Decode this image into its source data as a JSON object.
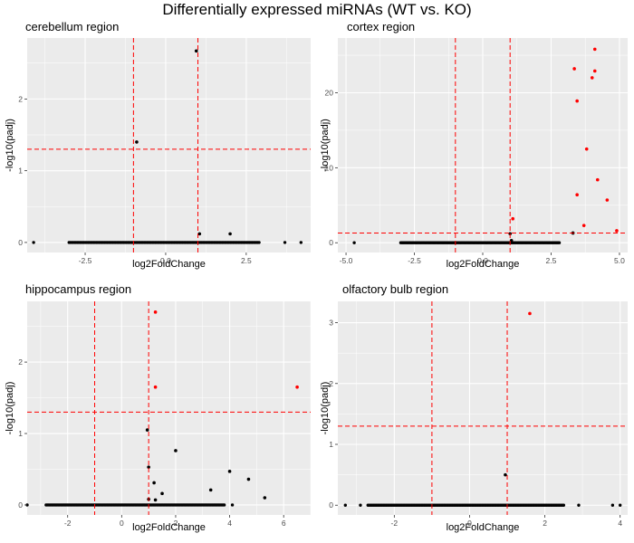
{
  "figure": {
    "title": "Differentially expressed miRNAs (WT vs. KO)"
  },
  "colors": {
    "panel_background": "#ebebeb",
    "grid_line": "#ffffff",
    "threshold_line": "#ff0000",
    "significant_point": "#ff0000",
    "nonsignificant_point": "#000000"
  },
  "chart_data": [
    {
      "type": "scatter",
      "title": "cerebellum region",
      "xlabel": "log2FoldChange",
      "ylabel": "-log10(padj)",
      "xlim": [
        -4.3,
        4.5
      ],
      "ylim": [
        -0.14,
        2.85
      ],
      "xticks": [
        -2.5,
        0,
        2.5
      ],
      "xtick_labels": [
        "-2.5",
        "0.0",
        "2.5"
      ],
      "yticks": [
        0,
        1,
        2
      ],
      "ytick_labels": [
        "0",
        "1",
        "2"
      ],
      "thresholds": {
        "x": [
          -1,
          1
        ],
        "y": 1.3
      },
      "grid": true,
      "baseline_range": [
        -3.0,
        2.9
      ],
      "baseline_extra": [
        -4.1,
        3.7,
        4.2
      ],
      "points": [
        {
          "x": 0.95,
          "y": 2.67,
          "sig": false
        },
        {
          "x": -0.9,
          "y": 1.4,
          "sig": false
        },
        {
          "x": 1.05,
          "y": 0.12,
          "sig": false
        },
        {
          "x": 2.0,
          "y": 0.12,
          "sig": false
        }
      ]
    },
    {
      "type": "scatter",
      "title": "cortex region",
      "xlabel": "log2FoldChange",
      "ylabel": "-log10(padj)",
      "xlim": [
        -5.3,
        5.3
      ],
      "ylim": [
        -1.3,
        27.3
      ],
      "xticks": [
        -5,
        -2.5,
        0,
        2.5,
        5
      ],
      "xtick_labels": [
        "-5.0",
        "-2.5",
        "0.0",
        "2.5",
        "5.0"
      ],
      "yticks": [
        0,
        10,
        20
      ],
      "ytick_labels": [
        "0",
        "10",
        "20"
      ],
      "thresholds": {
        "x": [
          -1,
          1
        ],
        "y": 1.3
      },
      "grid": true,
      "baseline_range": [
        -3.0,
        2.8
      ],
      "baseline_extra": [
        -4.7
      ],
      "points": [
        {
          "x": 4.1,
          "y": 25.8,
          "sig": true
        },
        {
          "x": 3.35,
          "y": 23.2,
          "sig": true
        },
        {
          "x": 4.1,
          "y": 22.9,
          "sig": true
        },
        {
          "x": 4.0,
          "y": 22.0,
          "sig": true
        },
        {
          "x": 3.45,
          "y": 18.9,
          "sig": true
        },
        {
          "x": 3.8,
          "y": 12.5,
          "sig": true
        },
        {
          "x": 4.2,
          "y": 8.4,
          "sig": true
        },
        {
          "x": 3.45,
          "y": 6.4,
          "sig": true
        },
        {
          "x": 4.55,
          "y": 5.7,
          "sig": true
        },
        {
          "x": 3.7,
          "y": 2.3,
          "sig": true
        },
        {
          "x": 4.9,
          "y": 1.6,
          "sig": true
        },
        {
          "x": 1.1,
          "y": 3.2,
          "sig": true
        },
        {
          "x": 3.3,
          "y": 1.3,
          "sig": false
        },
        {
          "x": 1.0,
          "y": 1.2,
          "sig": false
        },
        {
          "x": 1.05,
          "y": 0.3,
          "sig": false
        }
      ]
    },
    {
      "type": "scatter",
      "title": "hippocampus region",
      "xlabel": "log2FoldChange",
      "ylabel": "-log10(padj)",
      "xlim": [
        -3.5,
        7.0
      ],
      "ylim": [
        -0.14,
        2.85
      ],
      "xticks": [
        -2,
        0,
        2,
        4,
        6
      ],
      "xtick_labels": [
        "-2",
        "0",
        "2",
        "4",
        "6"
      ],
      "yticks": [
        0,
        1,
        2
      ],
      "ytick_labels": [
        "0",
        "1",
        "2"
      ],
      "thresholds": {
        "x": [
          -1,
          1
        ],
        "y": 1.3
      },
      "grid": true,
      "baseline_range": [
        -2.8,
        3.8
      ],
      "baseline_extra": [
        -3.5,
        4.1
      ],
      "points": [
        {
          "x": 1.25,
          "y": 2.7,
          "sig": true
        },
        {
          "x": 1.25,
          "y": 1.65,
          "sig": true
        },
        {
          "x": 6.5,
          "y": 1.65,
          "sig": true
        },
        {
          "x": 0.95,
          "y": 1.05,
          "sig": false
        },
        {
          "x": 2.0,
          "y": 0.76,
          "sig": false
        },
        {
          "x": 1.0,
          "y": 0.53,
          "sig": false
        },
        {
          "x": 4.0,
          "y": 0.47,
          "sig": false
        },
        {
          "x": 4.7,
          "y": 0.36,
          "sig": false
        },
        {
          "x": 1.2,
          "y": 0.31,
          "sig": false
        },
        {
          "x": 3.3,
          "y": 0.21,
          "sig": false
        },
        {
          "x": 1.5,
          "y": 0.16,
          "sig": false
        },
        {
          "x": 5.3,
          "y": 0.1,
          "sig": false
        },
        {
          "x": 1.0,
          "y": 0.08,
          "sig": false
        },
        {
          "x": 1.25,
          "y": 0.07,
          "sig": false
        }
      ]
    },
    {
      "type": "scatter",
      "title": "olfactory bulb region",
      "xlabel": "log2FoldChange",
      "ylabel": "-log10(padj)",
      "xlim": [
        -3.5,
        4.2
      ],
      "ylim": [
        -0.16,
        3.35
      ],
      "xticks": [
        -2,
        0,
        2,
        4
      ],
      "xtick_labels": [
        "-2",
        "0",
        "2",
        "4"
      ],
      "yticks": [
        0,
        1,
        2,
        3
      ],
      "ytick_labels": [
        "0",
        "1",
        "2",
        "3"
      ],
      "thresholds": {
        "x": [
          -1,
          1
        ],
        "y": 1.3
      },
      "grid": true,
      "baseline_range": [
        -2.7,
        2.5
      ],
      "baseline_extra": [
        -3.3,
        -2.9,
        2.9,
        3.8,
        4.0
      ],
      "points": [
        {
          "x": 1.6,
          "y": 3.15,
          "sig": true
        },
        {
          "x": 0.95,
          "y": 0.5,
          "sig": false
        }
      ]
    }
  ]
}
